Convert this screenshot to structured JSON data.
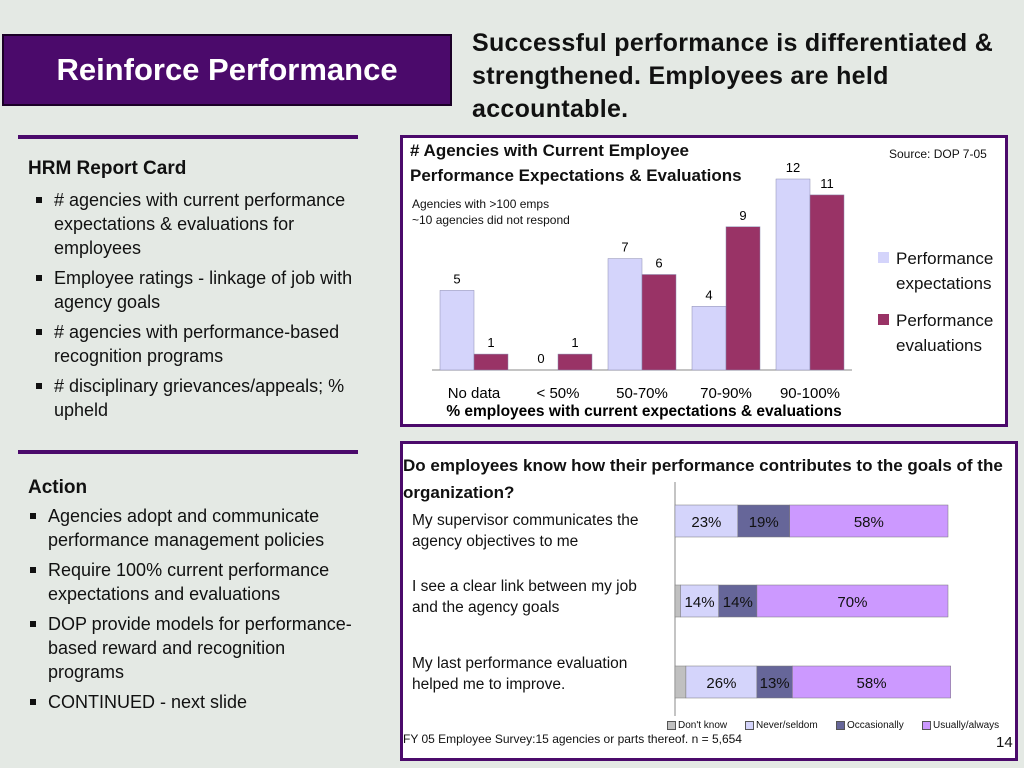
{
  "title": "Reinforce Performance",
  "headline": "Successful performance is differentiated & strengthened. Employees are held accountable.",
  "report_card": {
    "heading": "HRM Report Card",
    "items": [
      "# agencies with current performance expectations & evaluations for employees",
      "Employee ratings - linkage of job with agency goals",
      "# agencies with performance-based recognition programs",
      "# disciplinary grievances/appeals; % upheld"
    ]
  },
  "action": {
    "heading": "Action",
    "items": [
      "Agencies adopt and communicate performance management policies",
      "Require 100% current performance expectations and evaluations",
      "DOP provide models for performance-based reward and recognition programs",
      "CONTINUED - next slide"
    ]
  },
  "chart_data": [
    {
      "type": "bar",
      "title": "# Agencies with Current Employee Performance Expectations & Evaluations",
      "notes": [
        "Agencies with >100 emps",
        "~10 agencies did not respond"
      ],
      "source": "Source: DOP 7-05",
      "xlabel": "% employees with current expectations & evaluations",
      "categories": [
        "No data",
        "< 50%",
        "50-70%",
        "70-90%",
        "90-100%"
      ],
      "ylim": [
        0,
        12
      ],
      "series": [
        {
          "name": "Performance expectations",
          "values": [
            5,
            0,
            7,
            4,
            12
          ],
          "color": "#d4d4fb"
        },
        {
          "name": "Performance evaluations",
          "values": [
            1,
            1,
            6,
            9,
            11
          ],
          "color": "#993366"
        }
      ],
      "legend": "right"
    },
    {
      "type": "bar",
      "orientation": "horizontal-stacked",
      "title": "Do employees know how their performance contributes to the goals of the organization?",
      "categories": [
        "My supervisor communicates the agency objectives to me",
        "I see a clear link between my job and the agency goals",
        "My last performance evaluation helped me to improve."
      ],
      "series": [
        {
          "name": "Don't know",
          "values": [
            0,
            2,
            4
          ],
          "color": "#c0c0c0"
        },
        {
          "name": "Never/seldom",
          "values": [
            23,
            14,
            26
          ],
          "color": "#d4d4fb"
        },
        {
          "name": "Occasionally",
          "values": [
            19,
            14,
            13
          ],
          "color": "#666699"
        },
        {
          "name": "Usually/always",
          "values": [
            58,
            70,
            58
          ],
          "color": "#cc99ff"
        }
      ],
      "labels": [
        [
          "",
          "23%",
          "19%",
          "58%"
        ],
        [
          "",
          "14%",
          "14%",
          "70%"
        ],
        [
          "",
          "26%",
          "13%",
          "58%"
        ]
      ],
      "legend": "bottom",
      "footer": "FY 05 Employee Survey:15 agencies or parts thereof. n = 5,654"
    }
  ],
  "page_number": "14"
}
